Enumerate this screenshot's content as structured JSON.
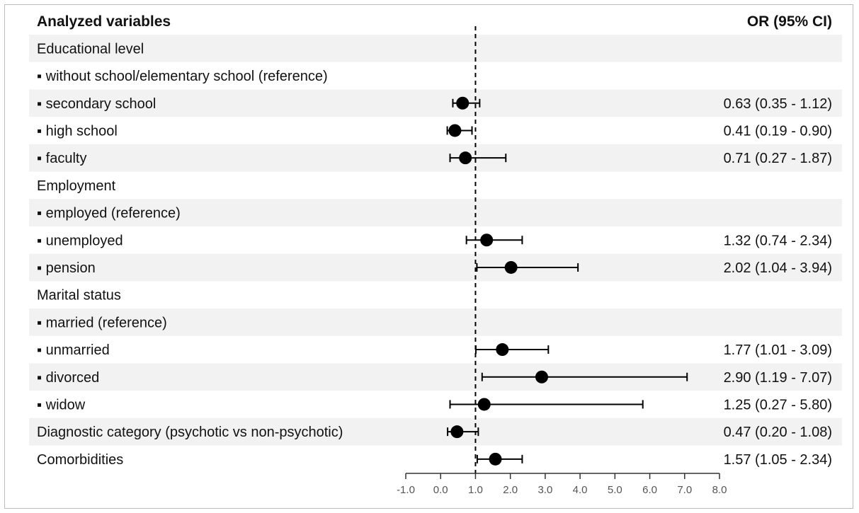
{
  "chart_data": {
    "type": "forest",
    "header_left": "Analyzed variables",
    "header_right": "OR (95% CI)",
    "reference_line": 1.0,
    "xlim": [
      -1.0,
      8.0
    ],
    "xticks": [
      "-1.0",
      "0.0",
      "1.0",
      "2.0",
      "3.0",
      "4.0",
      "5.0",
      "6.0",
      "7.0",
      "8.0"
    ],
    "xtick_values": [
      -1,
      0,
      1,
      2,
      3,
      4,
      5,
      6,
      7,
      8
    ],
    "rows": [
      {
        "label": "Educational level",
        "bullet": false
      },
      {
        "label": "without school/elementary school (reference)",
        "bullet": true
      },
      {
        "label": "secondary school",
        "bullet": true,
        "or": 0.63,
        "lo": 0.35,
        "hi": 1.12,
        "text": "0.63 (0.35 - 1.12)"
      },
      {
        "label": "high school",
        "bullet": true,
        "or": 0.41,
        "lo": 0.19,
        "hi": 0.9,
        "text": "0.41 (0.19 - 0.90)"
      },
      {
        "label": "faculty",
        "bullet": true,
        "or": 0.71,
        "lo": 0.27,
        "hi": 1.87,
        "text": "0.71 (0.27 - 1.87)"
      },
      {
        "label": "Employment",
        "bullet": false
      },
      {
        "label": "employed (reference)",
        "bullet": true
      },
      {
        "label": "unemployed",
        "bullet": true,
        "or": 1.32,
        "lo": 0.74,
        "hi": 2.34,
        "text": "1.32 (0.74 - 2.34)"
      },
      {
        "label": "pension",
        "bullet": true,
        "or": 2.02,
        "lo": 1.04,
        "hi": 3.94,
        "text": "2.02 (1.04 - 3.94)"
      },
      {
        "label": "Marital status",
        "bullet": false
      },
      {
        "label": "married (reference)",
        "bullet": true
      },
      {
        "label": "unmarried",
        "bullet": true,
        "or": 1.77,
        "lo": 1.01,
        "hi": 3.09,
        "text": "1.77 (1.01 - 3.09)"
      },
      {
        "label": "divorced",
        "bullet": true,
        "or": 2.9,
        "lo": 1.19,
        "hi": 7.07,
        "text": "2.90 (1.19 - 7.07)"
      },
      {
        "label": "widow",
        "bullet": true,
        "or": 1.25,
        "lo": 0.27,
        "hi": 5.8,
        "text": "1.25 (0.27 - 5.80)"
      },
      {
        "label": "Diagnostic category (psychotic vs non-psychotic)",
        "bullet": false,
        "or": 0.47,
        "lo": 0.2,
        "hi": 1.08,
        "text": "0.47 (0.20 - 1.08)"
      },
      {
        "label": "Comorbidities",
        "bullet": false,
        "or": 1.57,
        "lo": 1.05,
        "hi": 2.34,
        "text": "1.57 (1.05 - 2.34)"
      }
    ],
    "colors": {
      "stripe": "#f2f2f2",
      "marker": "#000000",
      "text": "#111111",
      "axis": "#333333",
      "tick_label": "#555555"
    }
  }
}
